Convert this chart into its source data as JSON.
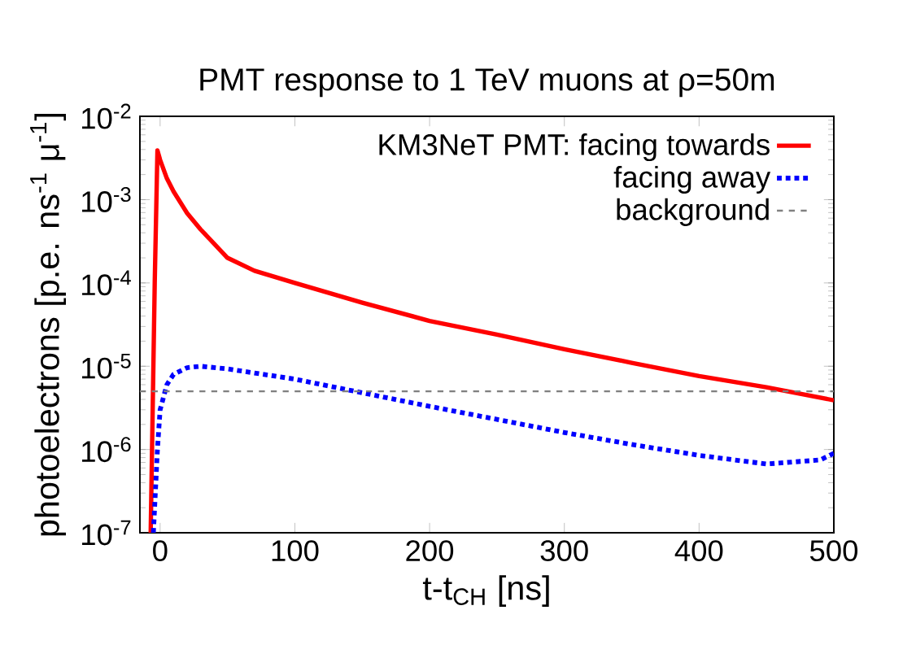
{
  "chart_data": {
    "type": "line",
    "title": "PMT response to 1 TeV muons at ρ=50m",
    "xlabel": "t-t$_{CH}$ [ns]",
    "ylabel": "photoelectrons [p.e. ns$^{-1}$ μ$^{-1}$]",
    "log": "y",
    "grid": false,
    "legend": "top right",
    "marker": "none",
    "xlim": [
      -15,
      500
    ],
    "ylim": [
      1e-07,
      0.01
    ],
    "xticks": [
      0,
      100,
      200,
      300,
      400,
      500
    ],
    "yticks": [
      {
        "value": 1e-07,
        "label": "10$^{-7}$"
      },
      {
        "value": 1e-06,
        "label": "10$^{-6}$"
      },
      {
        "value": 1e-05,
        "label": "10$^{-5}$"
      },
      {
        "value": 0.0001,
        "label": "10$^{-4}$"
      },
      {
        "value": 0.001,
        "label": "10$^{-3}$"
      },
      {
        "value": 0.01,
        "label": "10$^{-2}$"
      }
    ],
    "series": [
      {
        "name": "KM3NeT PMT: facing towards",
        "color": "#ff0000",
        "line_style": "solid",
        "x": [
          -7,
          -4,
          -2,
          0,
          5,
          10,
          20,
          30,
          50,
          70,
          100,
          150,
          200,
          250,
          300,
          350,
          400,
          450,
          500
        ],
        "values": [
          1e-07,
          0.0001,
          0.0039,
          0.003,
          0.0018,
          0.00125,
          0.00069,
          0.00044,
          0.0002,
          0.00014,
          0.0001,
          5.8e-05,
          3.5e-05,
          2.4e-05,
          1.6e-05,
          1.1e-05,
          7.6e-06,
          5.6e-06,
          3.9e-06
        ]
      },
      {
        "name": "facing away",
        "color": "#0000ff",
        "line_style": "dotted",
        "x": [
          -5,
          -2,
          0,
          5,
          10,
          20,
          30,
          50,
          100,
          150,
          200,
          250,
          300,
          350,
          400,
          450,
          490,
          500
        ],
        "values": [
          1e-07,
          1e-06,
          3e-06,
          6e-06,
          8e-06,
          9.6e-06,
          1e-05,
          9.3e-06,
          7e-06,
          4.8e-06,
          3.3e-06,
          2.3e-06,
          1.6e-06,
          1.15e-06,
          8.5e-07,
          6.7e-07,
          7.5e-07,
          9e-07
        ]
      }
    ],
    "ref_lines": [
      {
        "axis": "y",
        "value": 5e-06,
        "label": "background",
        "color": "#808080",
        "line_style": "dashed"
      }
    ]
  }
}
